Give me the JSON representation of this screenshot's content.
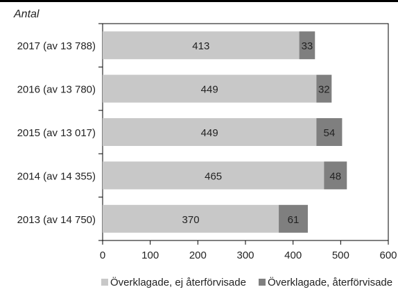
{
  "chart_data": {
    "type": "bar",
    "orientation": "horizontal",
    "stacked": true,
    "ylabel": "Antal",
    "categories": [
      "2017 (av 13 788)",
      "2016 (av 13 780)",
      "2015 (av 13 017)",
      "2014 (av 14 355)",
      "2013 (av 14 750)"
    ],
    "series": [
      {
        "name": "Överklagade, ej återförvisade",
        "values": [
          413,
          449,
          449,
          465,
          370
        ],
        "color": "#c8c8c8"
      },
      {
        "name": "Överklagade, återförvisade",
        "values": [
          33,
          32,
          54,
          48,
          61
        ],
        "color": "#7f7f7f"
      }
    ],
    "xlim": [
      0,
      600
    ],
    "xticks": [
      "0",
      "100",
      "200",
      "300",
      "400",
      "500",
      "600"
    ],
    "grid": false,
    "legend": "bottom"
  }
}
